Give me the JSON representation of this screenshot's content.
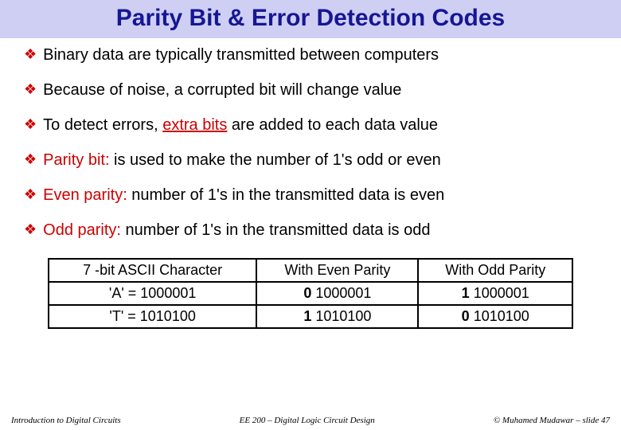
{
  "title": {
    "text": "Parity Bit & Error Detection Codes",
    "color": "#161694",
    "fontsize": 30,
    "background": "#cfcff4"
  },
  "bullet": {
    "icon_color": "#cc0000",
    "text_color": "#000000",
    "highlight_color": "#cc0000",
    "fontsize": 20
  },
  "bullets": [
    {
      "plain": "Binary data are typically transmitted between computers"
    },
    {
      "plain": "Because of noise, a corrupted bit will change value"
    },
    {
      "pre": "To detect errors, ",
      "hl": "extra bits",
      "hl_underline": true,
      "post": " are added to each data value"
    },
    {
      "hl": "Parity bit:",
      "post": " is used to make the number of 1's odd or even"
    },
    {
      "hl": "Even parity:",
      "post": " number of 1's in the transmitted data is even"
    },
    {
      "hl": "Odd parity:",
      "post": " number of 1's in the transmitted data is odd"
    }
  ],
  "table": {
    "border_color": "#000000",
    "fontsize": 18,
    "headers": [
      "7 -bit ASCII Character",
      "With Even Parity",
      "With Odd Parity"
    ],
    "rows": [
      [
        {
          "text": "'A' = 1000001"
        },
        {
          "bold_prefix": "0",
          "rest": " 1000001"
        },
        {
          "bold_prefix": "1",
          "rest": " 1000001"
        }
      ],
      [
        {
          "text": "'T' = 1010100"
        },
        {
          "bold_prefix": "1",
          "rest": " 1010100"
        },
        {
          "bold_prefix": "0",
          "rest": " 1010100"
        }
      ]
    ]
  },
  "footer": {
    "left": "Introduction to Digital Circuits",
    "center": "EE 200 – Digital Logic Circuit Design",
    "right": "© Muhamed Mudawar – slide 47",
    "color": "#000000",
    "fontsize": 11
  }
}
